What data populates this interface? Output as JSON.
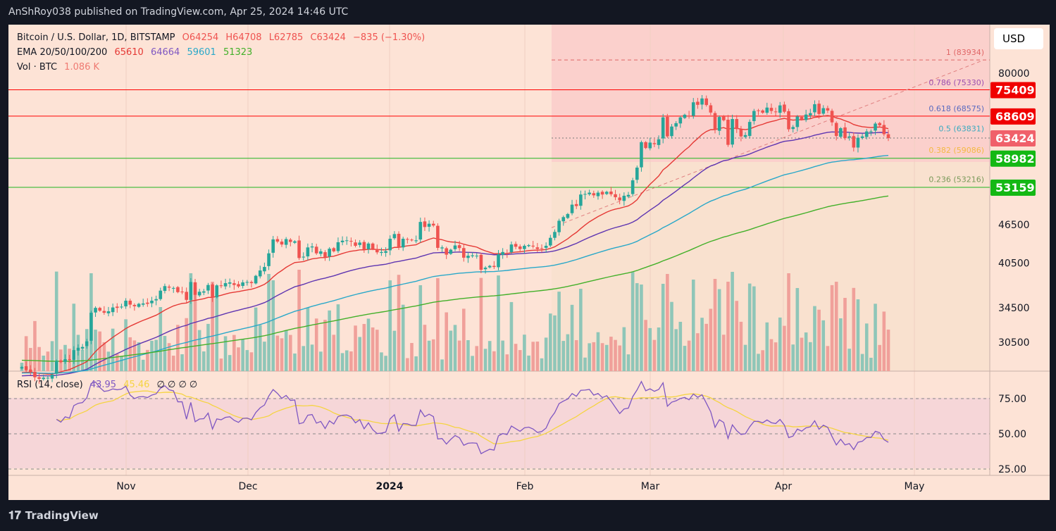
{
  "publish_line": "AnShRoy038 published on TradingView.com, Apr 25, 2024 14:46 UTC",
  "legend": {
    "symbol": "Bitcoin / U.S. Dollar, 1D, BITSTAMP",
    "open": "O64254",
    "high": "H64708",
    "low": "L62785",
    "close": "C63424",
    "change": "−835 (−1.30%)",
    "ema_label": "EMA 20/50/100/200",
    "ema20": "65610",
    "ema50": "64664",
    "ema100": "59601",
    "ema200": "51323",
    "vol_label": "Vol · BTC",
    "vol_value": "1.086 K",
    "rsi_label": "RSI (14, close)",
    "rsi_value": "43.95",
    "rsi_ma_value": "45.46",
    "rsi_extra": "∅  ∅  ∅  ∅"
  },
  "currency": "USD",
  "footer": "TradingView",
  "colors": {
    "up": "#26a69a",
    "down": "#ef5350",
    "ema20": "#e53935",
    "ema50": "#5e35b1",
    "ema100": "#29a8c9",
    "ema200": "#43b02a",
    "rsi": "#7e57c2",
    "rsi_ma": "#f5d442",
    "res": "#ff0000",
    "sup": "#1fb51f"
  },
  "chart_data": {
    "type": "candlestick",
    "start_date": "2023-10-08",
    "y_scale": "log",
    "closes": [
      27900,
      27600,
      27400,
      26900,
      26750,
      26860,
      26850,
      27150,
      28500,
      28400,
      28700,
      28650,
      29650,
      29900,
      29990,
      30600,
      33900,
      34500,
      34150,
      33900,
      34080,
      34550,
      34500,
      34650,
      35400,
      34900,
      34700,
      35000,
      35050,
      35000,
      35400,
      35600,
      36700,
      37300,
      37100,
      37050,
      36500,
      36500,
      35500,
      37850,
      36150,
      36550,
      36600,
      37450,
      35800,
      37400,
      37300,
      37700,
      37800,
      37450,
      37250,
      37800,
      37850,
      37700,
      38700,
      39450,
      39950,
      41950,
      44100,
      43750,
      43300,
      44150,
      43700,
      43800,
      41250,
      41450,
      42850,
      43000,
      41950,
      42250,
      41350,
      42650,
      42250,
      43650,
      43900,
      43950,
      43750,
      43100,
      43600,
      42550,
      43450,
      42600,
      42100,
      42150,
      42280,
      44200,
      44950,
      42850,
      44200,
      44150,
      43950,
      43950,
      46950,
      46100,
      46650,
      46350,
      42780,
      42850,
      41750,
      42500,
      43150,
      42750,
      41300,
      41600,
      41650,
      41600,
      39550,
      39850,
      40100,
      39950,
      41800,
      42150,
      42000,
      43300,
      42950,
      42600,
      43100,
      43200,
      42990,
      42600,
      42700,
      43100,
      44350,
      45300,
      47150,
      47770,
      48300,
      49950,
      49700,
      51800,
      51900,
      52150,
      51650,
      52150,
      51800,
      52300,
      51850,
      51300,
      50730,
      51570,
      51730,
      54500,
      57050,
      62500,
      61200,
      62400,
      62050,
      63150,
      68300,
      63800,
      66100,
      66900,
      68300,
      68950,
      68500,
      72100,
      71450,
      73100,
      71400,
      69500,
      65300,
      68400,
      67600,
      61900,
      67900,
      65500,
      63800,
      64100,
      67200,
      69900,
      69950,
      69450,
      70750,
      69900,
      69650,
      71300,
      69700,
      65450,
      65980,
      68500,
      67800,
      69000,
      69350,
      71600,
      69150,
      70600,
      70000,
      67100,
      63900,
      65700,
      63400,
      63800,
      61300,
      63500,
      63800,
      64950,
      64950,
      66800,
      66400,
      64300,
      63424
    ],
    "price_ticks": [
      "80000",
      "46500",
      "40500",
      "34500",
      "30500"
    ],
    "rsi_ticks": [
      "75.00",
      "50.00",
      "25.00"
    ],
    "time_ticks": [
      "Nov",
      "Dec",
      "2024",
      "Feb",
      "Mar",
      "Apr",
      "May"
    ],
    "levels": [
      {
        "value": 75409,
        "label": "75409",
        "kind": "res"
      },
      {
        "value": 68609,
        "label": "68609",
        "kind": "res"
      },
      {
        "value": 58982,
        "label": "58982",
        "kind": "sup"
      },
      {
        "value": 53159,
        "label": "53159",
        "kind": "sup"
      }
    ],
    "last_price": {
      "value": 63424,
      "label": "63424"
    },
    "fib": [
      {
        "ratio": "1",
        "value": 83934,
        "color": "#e06666"
      },
      {
        "ratio": "0.786",
        "value": 75330,
        "color": "#9c4fb0"
      },
      {
        "ratio": "0.618",
        "value": 68575,
        "color": "#5b6bc0"
      },
      {
        "ratio": "0.5",
        "value": 63831,
        "color": "#3aaac0"
      },
      {
        "ratio": "0.382",
        "value": 59086,
        "color": "#f4b942"
      },
      {
        "ratio": "0.236",
        "value": 53216,
        "color": "#7a9a5a"
      }
    ]
  }
}
